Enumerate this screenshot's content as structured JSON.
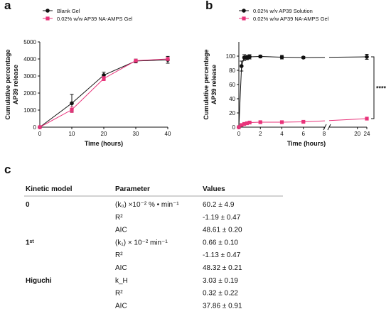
{
  "panels": {
    "a": "a",
    "b": "b",
    "c": "c"
  },
  "colors": {
    "blank": "#111111",
    "gel": "#e8337a"
  },
  "chart_data": [
    {
      "type": "line",
      "panel": "a",
      "xlabel": "Time (hours)",
      "ylabel": "Cumulative percentage AP39 release",
      "ylabel_lines": [
        "Cumulative percentage",
        "AP39 release"
      ],
      "xlim": [
        0,
        40
      ],
      "ylim": [
        0,
        5000
      ],
      "xticks": [
        0,
        10,
        20,
        30,
        40
      ],
      "yticks": [
        0,
        1000,
        2000,
        3000,
        4000,
        5000
      ],
      "legend": "top-left",
      "series": [
        {
          "name": "Blank Gel",
          "color": "#111111",
          "marker": "circle",
          "x": [
            0,
            10,
            20,
            30,
            40
          ],
          "y": [
            0,
            1400,
            3050,
            3880,
            3950
          ],
          "err": [
            0,
            520,
            180,
            110,
            200
          ]
        },
        {
          "name": "0.02% w/w AP39 NA-AMPS Gel",
          "color": "#e8337a",
          "marker": "square",
          "x": [
            0,
            10,
            20,
            30,
            40
          ],
          "y": [
            0,
            1020,
            2850,
            3900,
            4000
          ],
          "err": [
            0,
            160,
            120,
            80,
            90
          ]
        }
      ]
    },
    {
      "type": "line",
      "panel": "b",
      "xlabel": "Time (hours)",
      "ylabel": "Cumulative percentage AP39 release",
      "ylabel_lines": [
        "Cumulative percentage",
        "AP39 release"
      ],
      "xlim_segments": [
        [
          0,
          8
        ],
        [
          8,
          24
        ]
      ],
      "ylim": [
        0,
        120
      ],
      "xticks_left": [
        0,
        2,
        4,
        6,
        8
      ],
      "xticks_right": [
        20,
        24
      ],
      "yticks": [
        0,
        20,
        40,
        60,
        80,
        100
      ],
      "legend": "top-left",
      "significance": "****",
      "series": [
        {
          "name": "0.02% w/v AP39 Solution",
          "color": "#111111",
          "marker": "circle",
          "x": [
            0,
            0.25,
            0.5,
            0.75,
            1,
            2,
            4,
            6,
            24
          ],
          "y": [
            0,
            86,
            98,
            98,
            99,
            99.5,
            98.5,
            98,
            99
          ],
          "err": [
            0,
            7,
            4,
            3,
            3,
            2,
            2.5,
            1.5,
            3.5
          ]
        },
        {
          "name": "0.02% w/w AP39 NA-AMPS Gel",
          "color": "#e8337a",
          "marker": "square",
          "x": [
            0,
            0.25,
            0.5,
            0.75,
            1,
            2,
            4,
            6,
            24
          ],
          "y": [
            0,
            3,
            4.5,
            5.5,
            6.5,
            7,
            7,
            7.5,
            12
          ],
          "err": [
            0,
            0.8,
            0.8,
            0.8,
            0.8,
            0.8,
            0.8,
            0.8,
            1
          ]
        }
      ]
    }
  ],
  "table": {
    "headers": [
      "Kinetic model",
      "Parameter",
      "Values"
    ],
    "rows": [
      {
        "model": "0",
        "param": "(k₀) ×10⁻² % • min⁻¹",
        "value": "60.2 ± 4.9"
      },
      {
        "model": "",
        "param": "R²",
        "value": "-1.19 ± 0.47"
      },
      {
        "model": "",
        "param": "AIC",
        "value": "48.61 ± 0.20"
      },
      {
        "model": "1ˢᵗ",
        "param": "(k₁) × 10⁻² min⁻¹",
        "value": "0.66 ± 0.10"
      },
      {
        "model": "",
        "param": "R²",
        "value": "-1.13 ± 0.47"
      },
      {
        "model": "",
        "param": "AIC",
        "value": "48.32 ± 0.21"
      },
      {
        "model": "Higuchi",
        "param": "k_H",
        "value": "3.03 ± 0.19"
      },
      {
        "model": "",
        "param": "R²",
        "value": "0.32 ± 0.22"
      },
      {
        "model": "",
        "param": "AIC",
        "value": "37.86 ± 0.91"
      }
    ]
  }
}
